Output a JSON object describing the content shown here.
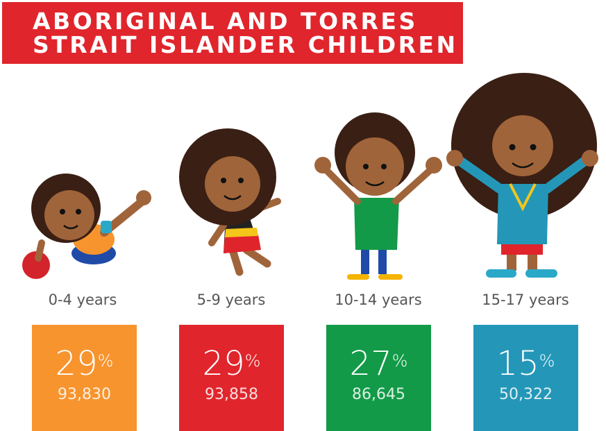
{
  "header": {
    "title_lines": [
      "ABORIGINAL AND TORRES",
      "STRAIT ISLANDER CHILDREN"
    ]
  },
  "percent_sign": "%",
  "groups": [
    {
      "label": "0-4 years",
      "percent": 29,
      "count": "93,830",
      "color": "#f7942e"
    },
    {
      "label": "5-9 years",
      "percent": 29,
      "count": "93,858",
      "color": "#e0252c"
    },
    {
      "label": "10-14 years",
      "percent": 27,
      "count": "86,645",
      "color": "#129a48"
    },
    {
      "label": "15-17 years",
      "percent": 15,
      "count": "50,322",
      "color": "#2497b8"
    }
  ]
}
